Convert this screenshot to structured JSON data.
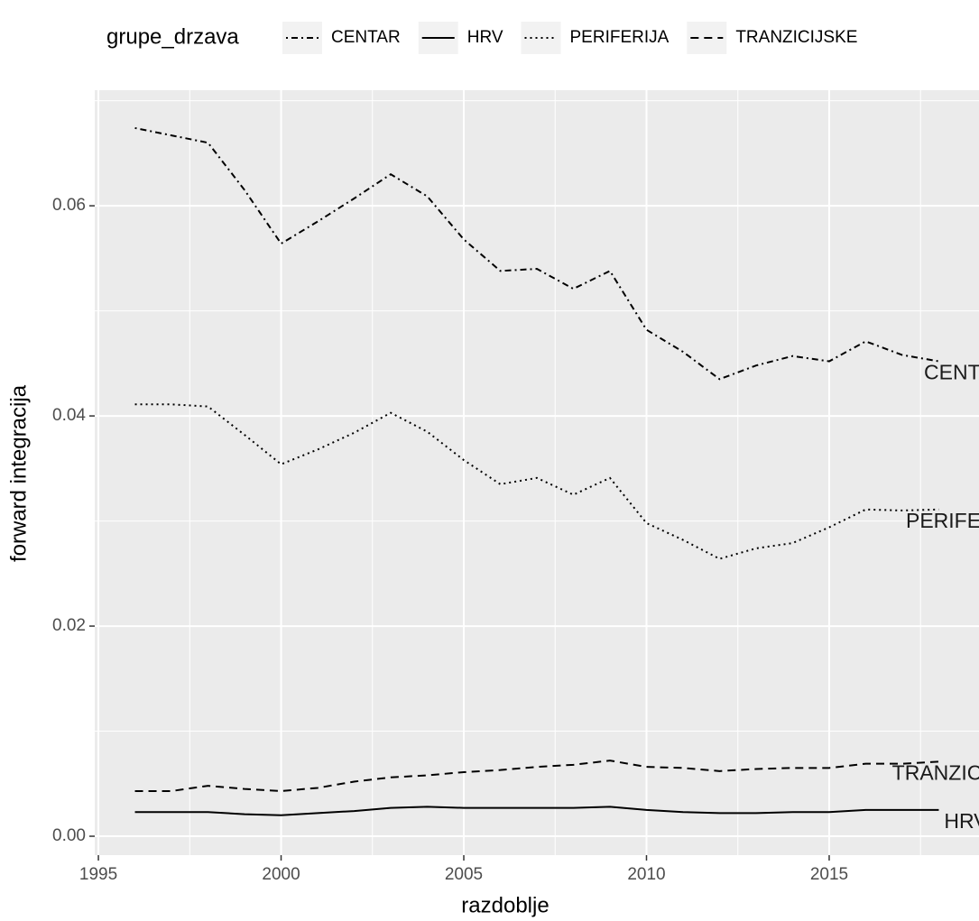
{
  "chart_data": {
    "type": "line",
    "x_label": "razdoblje",
    "y_label": "forward integracija",
    "legend_title": "grupe_drzava",
    "legend_position": "top",
    "x": [
      1996,
      1997,
      1998,
      1999,
      2000,
      2001,
      2002,
      2003,
      2004,
      2005,
      2006,
      2007,
      2008,
      2009,
      2010,
      2011,
      2012,
      2013,
      2014,
      2015,
      2016,
      2017,
      2018
    ],
    "series": [
      {
        "name": "CENTAR",
        "color": "#000000",
        "linetype": "dotdash",
        "values": [
          0.0674,
          0.0667,
          0.066,
          0.0615,
          0.0564,
          0.0585,
          0.0607,
          0.063,
          0.0609,
          0.0568,
          0.0538,
          0.054,
          0.0521,
          0.0538,
          0.0482,
          0.0461,
          0.0435,
          0.0448,
          0.0457,
          0.0452,
          0.0471,
          0.0458,
          0.0452
        ]
      },
      {
        "name": "HRV",
        "color": "#000000",
        "linetype": "solid",
        "values": [
          0.0023,
          0.0023,
          0.0023,
          0.0021,
          0.002,
          0.0022,
          0.0024,
          0.0027,
          0.0028,
          0.0027,
          0.0027,
          0.0027,
          0.0027,
          0.0028,
          0.0025,
          0.0023,
          0.0022,
          0.0022,
          0.0023,
          0.0023,
          0.0025,
          0.0025,
          0.0025
        ]
      },
      {
        "name": "PERIFERIJA",
        "color": "#000000",
        "linetype": "dotted",
        "values": [
          0.0411,
          0.0411,
          0.0409,
          0.0382,
          0.0354,
          0.0368,
          0.0384,
          0.0403,
          0.0385,
          0.0358,
          0.0335,
          0.0341,
          0.0325,
          0.0341,
          0.0298,
          0.0282,
          0.0264,
          0.0274,
          0.0279,
          0.0294,
          0.0311,
          0.031,
          0.0311
        ]
      },
      {
        "name": "TRANZICIJSKE",
        "color": "#000000",
        "linetype": "dashed",
        "values": [
          0.0043,
          0.0043,
          0.0048,
          0.0045,
          0.0043,
          0.0046,
          0.0052,
          0.0056,
          0.0058,
          0.0061,
          0.0063,
          0.0066,
          0.0068,
          0.0072,
          0.0066,
          0.0065,
          0.0062,
          0.0064,
          0.0065,
          0.0065,
          0.0069,
          0.0069,
          0.0071
        ]
      }
    ],
    "xlim": [
      1994.9,
      2019.1
    ],
    "ylim": [
      -0.0018,
      0.071
    ],
    "xticks": [
      1995,
      2000,
      2005,
      2010,
      2015
    ],
    "yticks": [
      {
        "value": 0,
        "label": "0.00"
      },
      {
        "value": 0.02,
        "label": "0.02"
      },
      {
        "value": 0.04,
        "label": "0.04"
      },
      {
        "value": 0.06,
        "label": "0.06"
      }
    ],
    "xticks_minor": [
      1997.5,
      2002.5,
      2007.5,
      2012.5,
      2017.5
    ],
    "yticks_minor": [
      0.01,
      0.03,
      0.05,
      0.07
    ],
    "grid": true,
    "line_end_labels": true
  }
}
